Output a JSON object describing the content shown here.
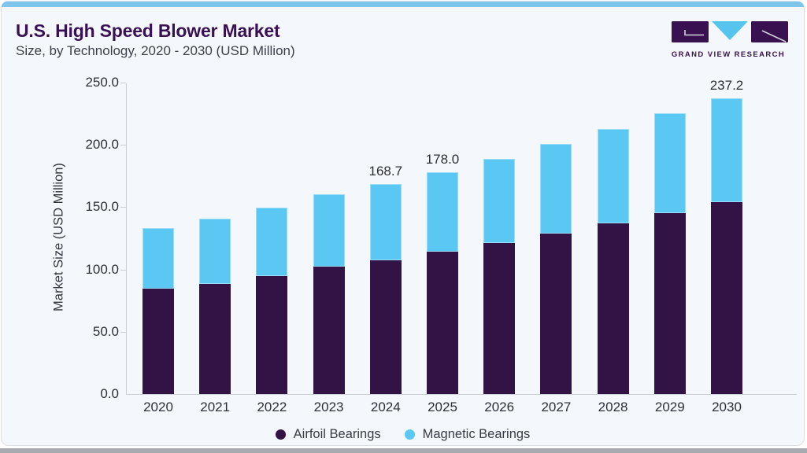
{
  "header": {
    "title": "U.S. High Speed Blower Market",
    "subtitle": "Size, by Technology, 2020 - 2030 (USD Million)",
    "logo_text": "GRAND VIEW RESEARCH"
  },
  "chart_data": {
    "type": "bar",
    "stacked": true,
    "title": "U.S. High Speed Blower Market",
    "subtitle": "Size, by Technology, 2020 - 2030 (USD Million)",
    "categories": [
      "2020",
      "2021",
      "2022",
      "2023",
      "2024",
      "2025",
      "2026",
      "2027",
      "2028",
      "2029",
      "2030"
    ],
    "series": [
      {
        "name": "Airfoil Bearings",
        "color": "#331245",
        "values": [
          84.5,
          88.5,
          95.0,
          102.0,
          107.5,
          114.0,
          121.5,
          129.0,
          137.0,
          145.5,
          154.0
        ]
      },
      {
        "name": "Magnetic Bearings",
        "color": "#5bc8f3",
        "values": [
          48.9,
          52.0,
          54.6,
          58.3,
          61.2,
          64.0,
          67.3,
          71.8,
          75.8,
          79.9,
          83.2
        ]
      }
    ],
    "totals": [
      133.4,
      140.5,
      149.6,
      160.3,
      168.7,
      178.0,
      188.8,
      200.8,
      212.8,
      225.4,
      237.2
    ],
    "bar_labels": [
      "",
      "",
      "",
      "",
      "168.7",
      "178.0",
      "",
      "",
      "",
      "",
      "237.2"
    ],
    "ylabel": "Market Size (USD Million)",
    "xlabel": "",
    "ylim": [
      0,
      250
    ],
    "yticks": [
      0,
      50,
      100,
      150,
      200,
      250
    ],
    "ytick_labels": [
      "0.0",
      "50.0",
      "100.0",
      "150.0",
      "200.0",
      "250.0"
    ],
    "grid": false,
    "legend_position": "bottom"
  },
  "theme": {
    "accent_blue": "#7ec5ec",
    "bar_purple": "#331245",
    "bar_blue": "#5bc8f3",
    "title_purple": "#3a1055",
    "card_bg": "#f4f8fc"
  }
}
